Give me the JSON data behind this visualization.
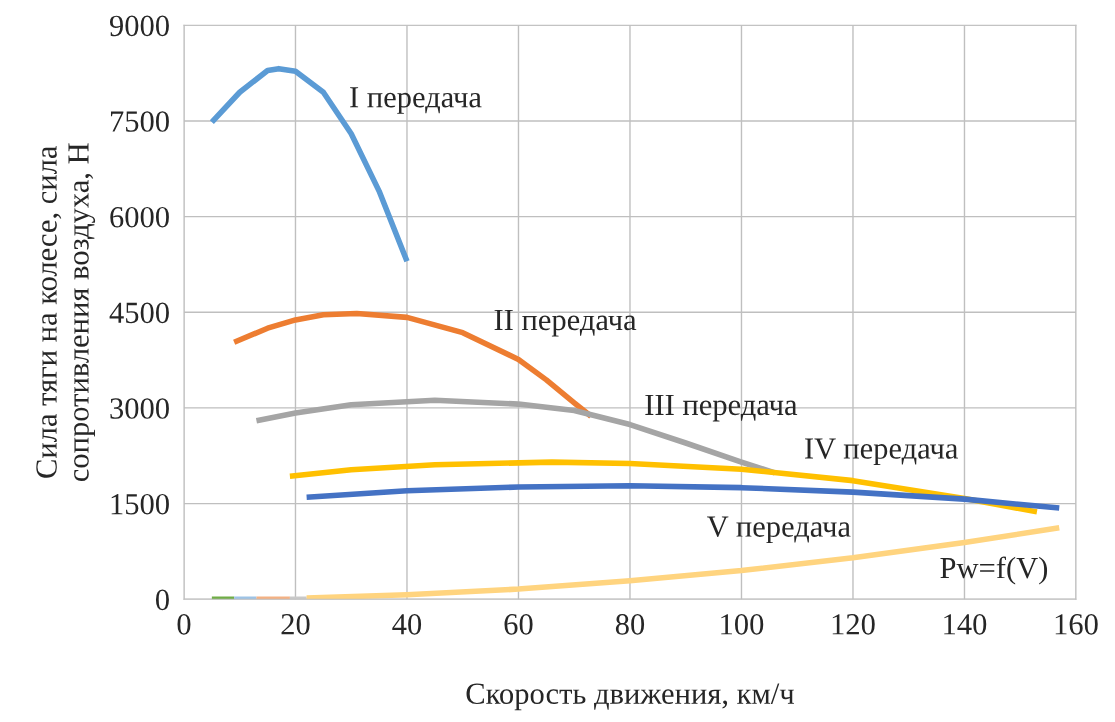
{
  "chart_data": {
    "type": "line",
    "xlabel": "Скорость движения, км/ч",
    "ylabel": "Сила тяги на колесе, сила\nсопротивления воздуха, Н",
    "xlim": [
      0,
      160
    ],
    "xticks": [
      0,
      20,
      40,
      60,
      80,
      100,
      120,
      140,
      160
    ],
    "ylim": [
      0,
      9000
    ],
    "yticks": [
      0,
      1500,
      3000,
      4500,
      6000,
      7500,
      9000
    ],
    "grid": true,
    "marker": "none",
    "line_style": "solid",
    "series": [
      {
        "color": "#5b9bd5",
        "x": [
          5,
          10,
          15,
          17,
          20,
          25,
          30,
          35,
          40
        ],
        "values": [
          7480,
          7950,
          8290,
          8320,
          8280,
          7950,
          7300,
          6400,
          5300
        ]
      },
      {
        "color": "#ed7d31",
        "x": [
          9,
          15,
          20,
          25,
          31,
          40,
          50,
          60,
          65,
          70,
          73
        ],
        "values": [
          4030,
          4250,
          4380,
          4460,
          4480,
          4420,
          4180,
          3760,
          3440,
          3080,
          2870
        ]
      },
      {
        "color": "#a5a5a5",
        "x": [
          13,
          20,
          30,
          45,
          60,
          70,
          80,
          90,
          100,
          106
        ],
        "values": [
          2800,
          2920,
          3050,
          3120,
          3060,
          2960,
          2740,
          2450,
          2150,
          1980
        ]
      },
      {
        "color": "#ffc000",
        "x": [
          19,
          30,
          45,
          66,
          80,
          100,
          120,
          140,
          153
        ],
        "values": [
          1930,
          2030,
          2110,
          2150,
          2130,
          2040,
          1860,
          1580,
          1370
        ]
      },
      {
        "color": "#4472c4",
        "x": [
          22,
          40,
          60,
          80,
          100,
          120,
          140,
          157
        ],
        "values": [
          1600,
          1700,
          1760,
          1780,
          1750,
          1680,
          1570,
          1430
        ]
      },
      {
        "color": "#70ad47",
        "x": [
          5,
          9
        ],
        "values": [
          0,
          0
        ]
      },
      {
        "color": "#9dc3e6",
        "x": [
          9,
          13
        ],
        "values": [
          0,
          0
        ]
      },
      {
        "color": "#f4b183",
        "x": [
          13,
          19
        ],
        "values": [
          0,
          0
        ]
      },
      {
        "color": "#c9c9c9",
        "x": [
          19,
          22
        ],
        "values": [
          0,
          0
        ]
      },
      {
        "color": "#ffd47f",
        "x": [
          22,
          40,
          60,
          80,
          100,
          120,
          140,
          157
        ],
        "values": [
          20,
          70,
          160,
          290,
          450,
          650,
          890,
          1120
        ]
      }
    ],
    "annotations": [
      "I передача",
      "II передача",
      "III передача",
      "IV передача",
      "V передача",
      "Pw=f(V)"
    ]
  }
}
